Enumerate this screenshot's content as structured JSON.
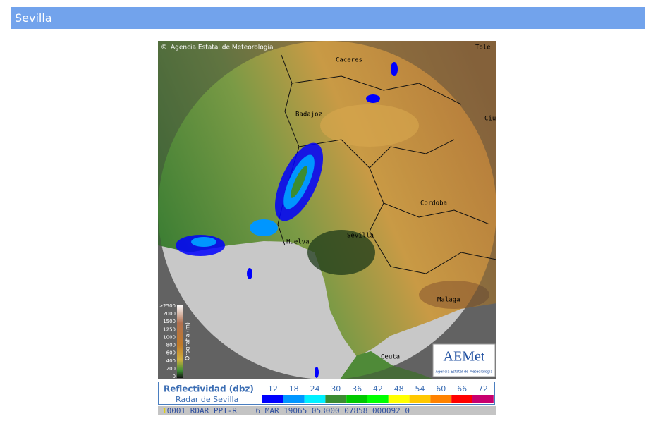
{
  "header": {
    "title": "Sevilla"
  },
  "radar": {
    "copyright": "Agencia Estatal de Meteorologia",
    "cities": [
      "Caceres",
      "Tole",
      "Badajoz",
      "Ciu",
      "Cordoba",
      "Sevilla",
      "Huelva",
      "Malaga",
      "Ceuta"
    ],
    "orography": {
      "title": "Orografia (m)",
      "ticks": [
        ">2500",
        2000,
        1500,
        1250,
        1000,
        800,
        600,
        400,
        200,
        0
      ]
    },
    "logo": {
      "name": "AEMet",
      "subtitle": "Agencia Estatal de Meteorología"
    }
  },
  "legend": {
    "title": "Reflectividad (dbz)",
    "subtitle": "Radar de Sevilla",
    "scale": [
      {
        "value": 12,
        "color": "#0000fe"
      },
      {
        "value": 18,
        "color": "#0096ff"
      },
      {
        "value": 24,
        "color": "#00f0ff"
      },
      {
        "value": 30,
        "color": "#3c8c32"
      },
      {
        "value": 36,
        "color": "#00c800"
      },
      {
        "value": 42,
        "color": "#00ff00"
      },
      {
        "value": 48,
        "color": "#ffff00"
      },
      {
        "value": 54,
        "color": "#ffc800"
      },
      {
        "value": 60,
        "color": "#ff8200"
      },
      {
        "value": 66,
        "color": "#ff0000"
      },
      {
        "value": 72,
        "color": "#c8006e"
      }
    ]
  },
  "status": {
    "frame": "1",
    "text": "0001 RDAR_PPI-R    6 MAR 19065 053000 07858 000092 0"
  }
}
